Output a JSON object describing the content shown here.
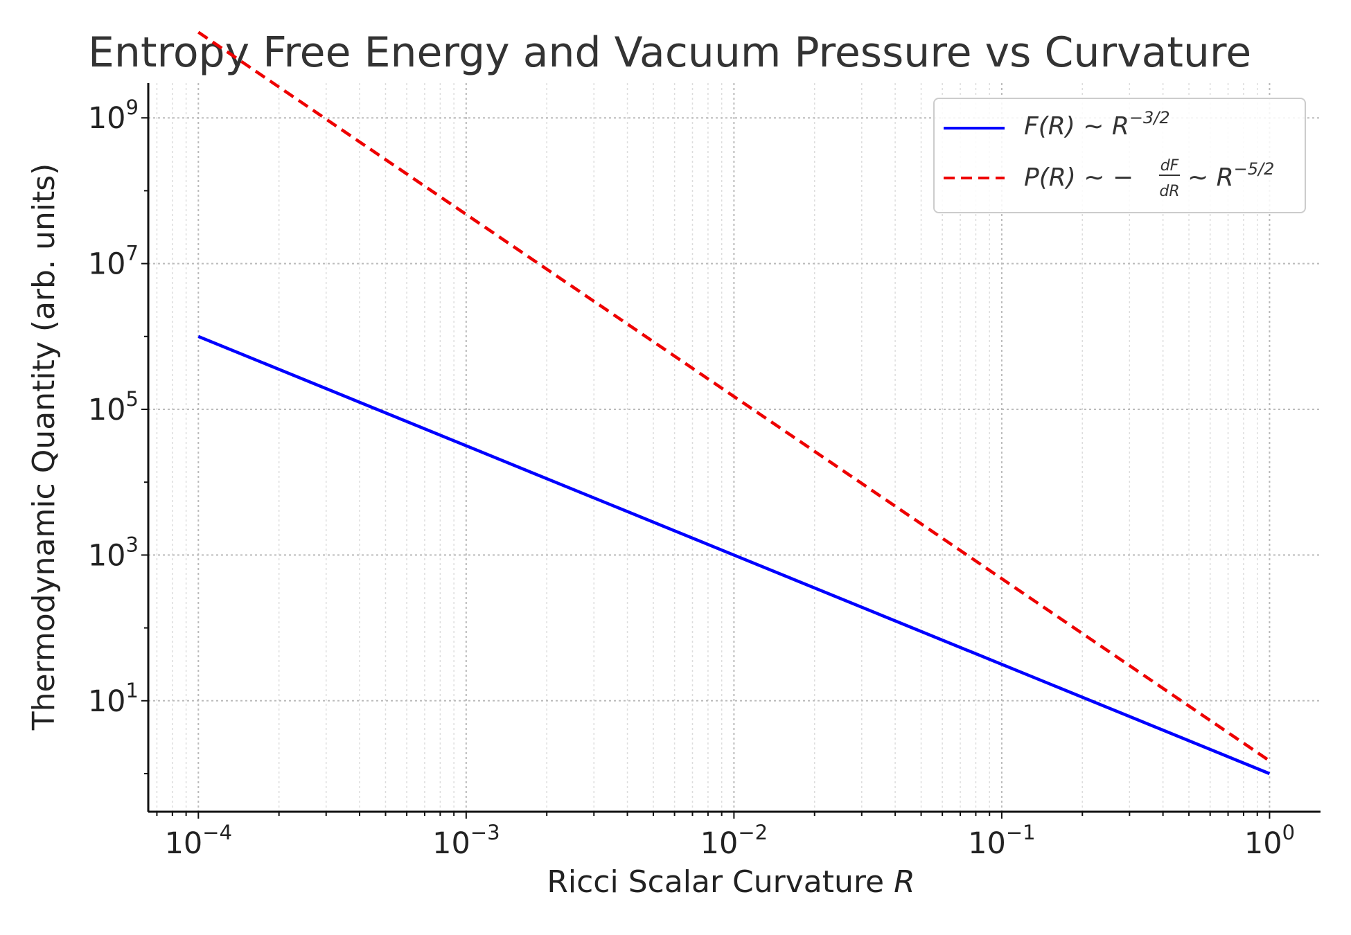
{
  "chart_data": {
    "type": "line",
    "title": "Entropy Free Energy and Vacuum Pressure vs Curvature",
    "xlabel": "Ricci Scalar Curvature",
    "xlabel_var": "R",
    "ylabel": "Thermodynamic Quantity (arb. units)",
    "xscale": "log",
    "yscale": "log",
    "xlim": [
      6.5e-05,
      1.55
    ],
    "ylim": [
      0.3,
      3000000000
    ],
    "grid": true,
    "grid_style": "dotted",
    "legend_position": "top-right",
    "x_ticks": [
      {
        "value": 0.0001,
        "base": "10",
        "exp": "−4"
      },
      {
        "value": 0.001,
        "base": "10",
        "exp": "−3"
      },
      {
        "value": 0.01,
        "base": "10",
        "exp": "−2"
      },
      {
        "value": 0.1,
        "base": "10",
        "exp": "−1"
      },
      {
        "value": 1,
        "base": "10",
        "exp": "0"
      }
    ],
    "y_ticks": [
      {
        "value": 10,
        "base": "10",
        "exp": "1"
      },
      {
        "value": 1000,
        "base": "10",
        "exp": "3"
      },
      {
        "value": 100000,
        "base": "10",
        "exp": "5"
      },
      {
        "value": 10000000,
        "base": "10",
        "exp": "7"
      },
      {
        "value": 1000000000,
        "base": "10",
        "exp": "9"
      }
    ],
    "series": [
      {
        "key": "F",
        "color": "#0000ff",
        "dash": "solid",
        "x": [
          0.0001,
          0.001,
          0.01,
          0.1,
          1
        ],
        "y": [
          1000000,
          31623,
          1000,
          31.6,
          1
        ],
        "legend": {
          "main": "F(R) ∼ R",
          "sup": "−3/2"
        }
      },
      {
        "key": "P",
        "color": "#ee0000",
        "dash": "dashed",
        "x": [
          0.0001,
          0.001,
          0.01,
          0.1,
          1
        ],
        "y": [
          15000000000,
          47434000,
          150000,
          474,
          1.5
        ],
        "legend": {
          "main_a": "P(R) ∼ −",
          "frac_num": "dF",
          "frac_den": "dR",
          "main_b": "∼ R",
          "sup": "−5/2"
        }
      }
    ]
  }
}
